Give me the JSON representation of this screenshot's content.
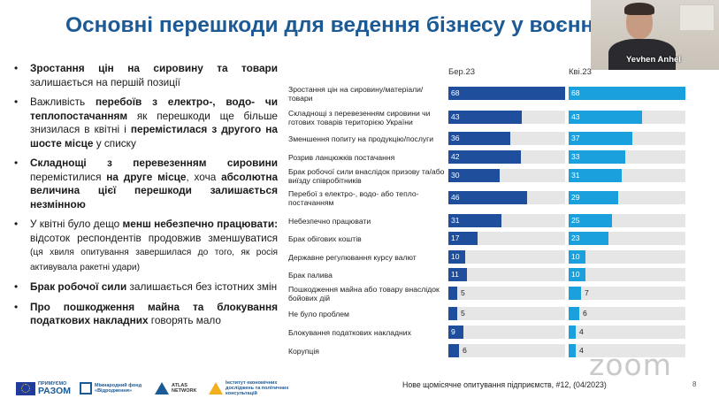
{
  "title": "Основні перешкоди для ведення бізнесу у воєнний",
  "bullets": [
    {
      "segments": [
        {
          "t": "Зростання цін на сировину та товари",
          "b": true
        },
        {
          "t": " залишається на першій позиції",
          "b": false
        }
      ]
    },
    {
      "segments": [
        {
          "t": "Важливість ",
          "b": false
        },
        {
          "t": "перебоїв з електро-, водо- чи теплопостачанням",
          "b": true
        },
        {
          "t": " як перешкоди ще більше знизилася в квітні і ",
          "b": false
        },
        {
          "t": "перемістилася з другого на шосте місце",
          "b": true
        },
        {
          "t": " у списку",
          "b": false
        }
      ]
    },
    {
      "segments": [
        {
          "t": "Складнощі з перевезенням сировини",
          "b": true
        },
        {
          "t": " перемістилися ",
          "b": false
        },
        {
          "t": "на друге місце",
          "b": true
        },
        {
          "t": ", хоча ",
          "b": false
        },
        {
          "t": "абсолютна величина цієї перешкоди залишається незмінною",
          "b": true
        }
      ]
    },
    {
      "segments": [
        {
          "t": "У квітні було дещо ",
          "b": false
        },
        {
          "t": "менш небезпечно працювати:",
          "b": true
        },
        {
          "t": " відсоток респондентів продовжив зменшуватися ",
          "b": false
        },
        {
          "t": "(ця хвиля опитування завершилася до того, як росія активувала ракетні удари)",
          "b": false,
          "small": true
        }
      ]
    },
    {
      "segments": [
        {
          "t": "Брак робочої сили",
          "b": true
        },
        {
          "t": " залишається без істотних змін",
          "b": false
        }
      ]
    },
    {
      "segments": [
        {
          "t": "Про пошкодження майна та блокування податкових накладних",
          "b": true
        },
        {
          "t": " говорять мало",
          "b": false
        }
      ]
    }
  ],
  "chart_data": {
    "type": "bar",
    "orientation": "horizontal",
    "xlim": [
      0,
      68
    ],
    "categories": [
      "Зростання цін на сировину/матеріали/товари",
      "Складнощі з перевезенням сировини чи готових товарів територією України",
      "Зменшення попиту на продукцію/послуги",
      "Розрив ланцюжків постачання",
      "Брак робочої сили внаслідок призову та/або виїзду співробітників",
      "Перебої з електро-, водо- або тепло-постачанням",
      "Небезпечно працювати",
      "Брак обігових коштів",
      "Державне регулювання курсу валют",
      "Брак палива",
      "Пошкодження майна або товару внаслідок бойових дій",
      "Не було проблем",
      "Блокування податкових накладних",
      "Корупція"
    ],
    "series": [
      {
        "name": "Бер.23",
        "color": "#1f4e9c",
        "values": [
          68,
          43,
          36,
          42,
          30,
          46,
          31,
          17,
          10,
          11,
          5,
          5,
          9,
          6
        ]
      },
      {
        "name": "Кві.23",
        "color": "#1aa0dc",
        "values": [
          68,
          43,
          37,
          33,
          31,
          29,
          25,
          23,
          10,
          10,
          7,
          6,
          4,
          4
        ]
      }
    ]
  },
  "webcam": {
    "name": "Yevhen Anhel"
  },
  "footer": {
    "logos": {
      "eu_main": "ПРИМУЄМО",
      "eu_sub": "РАЗОМ",
      "irf_main": "Міжнародний фонд «Відродження»",
      "atlas": "ATLAS NETWORK",
      "ier": "Інститут економічних досліджень та політичних консультацій"
    },
    "caption": "Нове щомісячне опитування підприємств, #12, (04/2023)",
    "page": "8"
  },
  "zoom_watermark": "zoom"
}
